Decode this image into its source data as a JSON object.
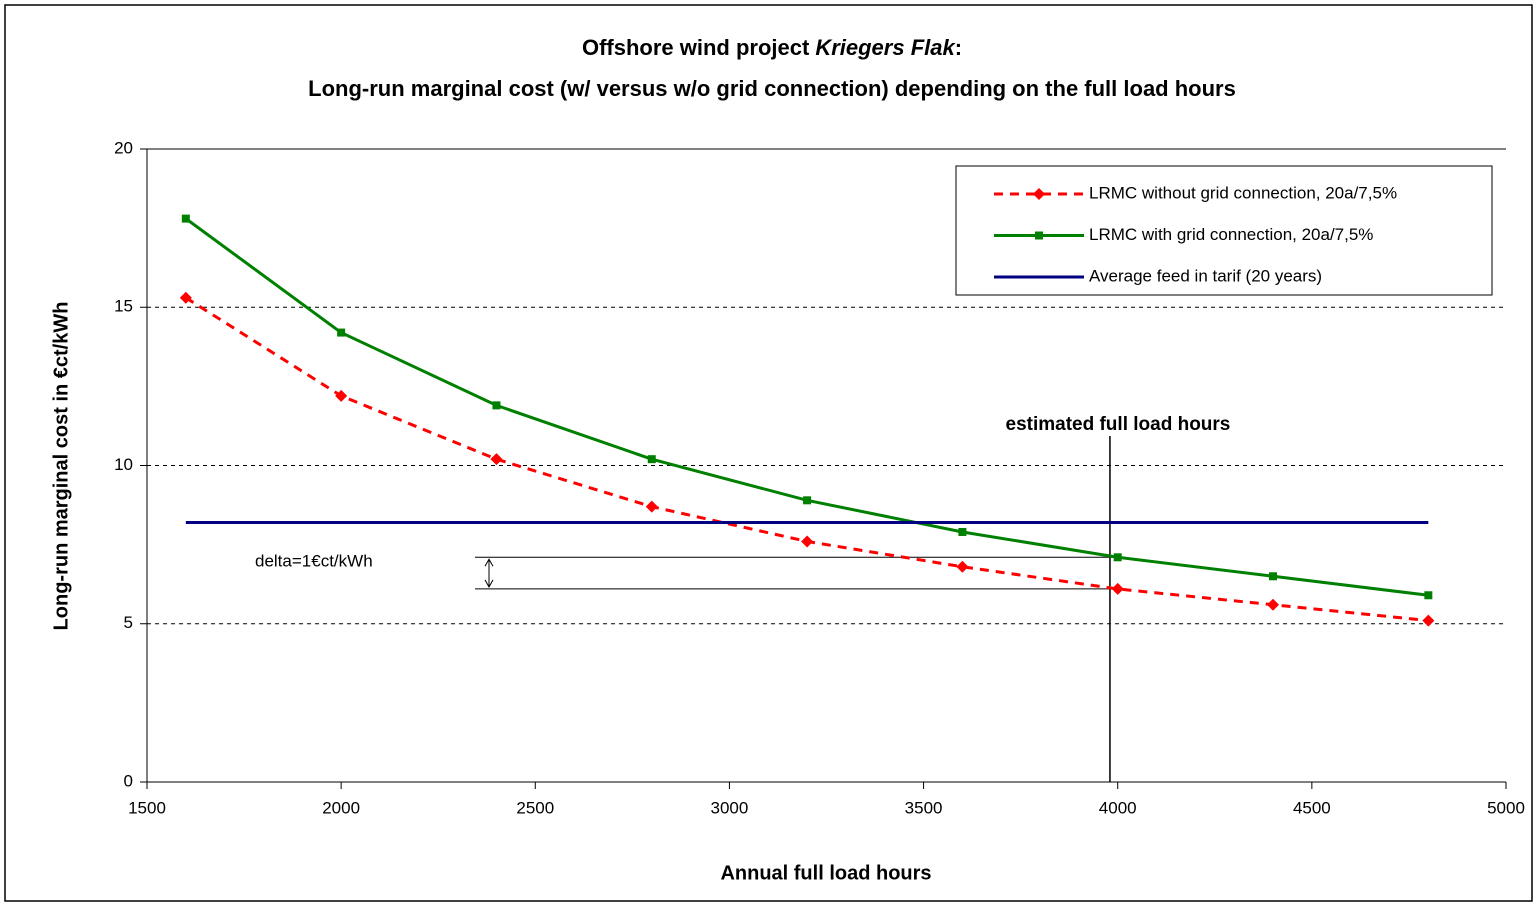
{
  "chart_data": {
    "type": "line",
    "title": [
      "Offshore wind project",
      "Kriegers Flak",
      ":"
    ],
    "subtitle": "Long-run marginal cost (w/ versus w/o grid connection) depending on the full load hours",
    "x_label": "Annual full load hours",
    "y_label": "Long-run marginal cost in €ct/kWh",
    "x": [
      1600,
      2000,
      2400,
      2800,
      3200,
      3600,
      4000,
      4400,
      4800
    ],
    "series": [
      {
        "name": "LRMC without grid connection, 20a/7,5%",
        "color": "#ff0000",
        "marker": "diamond",
        "dashed": true,
        "values": [
          15.3,
          12.2,
          10.2,
          8.7,
          7.6,
          6.8,
          6.1,
          5.6,
          5.1
        ]
      },
      {
        "name": "LRMC with grid connection, 20a/7,5%",
        "color": "#008000",
        "marker": "square",
        "dashed": false,
        "values": [
          17.8,
          14.2,
          11.9,
          10.2,
          8.9,
          7.9,
          7.1,
          6.5,
          5.9
        ]
      },
      {
        "name": "Average feed in tarif (20 years)",
        "color": "#000080",
        "marker": "none",
        "dashed": false,
        "values": [
          8.2,
          8.2,
          8.2,
          8.2,
          8.2,
          8.2,
          8.2,
          8.2,
          8.2
        ]
      }
    ],
    "annotations": [
      {
        "text": "estimated full load hours",
        "x": 3980
      },
      {
        "text": "delta=1€ct/kWh"
      }
    ],
    "xlim": [
      1500,
      5000
    ],
    "xticks": [
      1500,
      2000,
      2500,
      3000,
      3500,
      4000,
      4500,
      5000
    ],
    "ylim": [
      0,
      20
    ],
    "yticks": [
      0,
      5,
      10,
      15,
      20
    ],
    "grid": true,
    "legend": "upper right"
  }
}
